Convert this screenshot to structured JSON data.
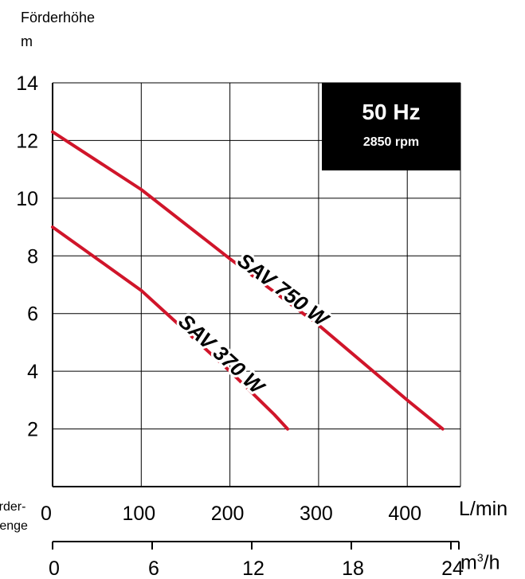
{
  "chart_data": {
    "type": "line",
    "ylabel_line1": "Förderhöhe",
    "ylabel_line2": "m",
    "xlabel_left_line1": "Förder-",
    "xlabel_left_line2": "menge",
    "x_unit_top": "L/min",
    "x_unit_bottom_base": "m",
    "x_unit_bottom_sup": "3",
    "x_unit_bottom_tail": "/h",
    "xlim": [
      0,
      460
    ],
    "ylim": [
      0,
      14
    ],
    "yticks": [
      2,
      4,
      6,
      8,
      10,
      12,
      14
    ],
    "xticks_top": [
      0,
      100,
      200,
      300,
      400
    ],
    "xticks_bottom": [
      0,
      6,
      12,
      18,
      24
    ],
    "grid": true,
    "badge": {
      "title": "50 Hz",
      "subtitle": "2850 rpm",
      "bg": "#000000",
      "fg": "#ffffff"
    },
    "series": [
      {
        "name": "SAV 750 W",
        "color": "#d0152a",
        "x": [
          0,
          100,
          200,
          300,
          400,
          440
        ],
        "y": [
          12.3,
          10.3,
          7.9,
          5.6,
          3.0,
          2.0
        ]
      },
      {
        "name": "SAV 370 W",
        "color": "#d0152a",
        "x": [
          0,
          100,
          200,
          250,
          265
        ],
        "y": [
          9.0,
          6.8,
          4.0,
          2.5,
          2.0
        ]
      }
    ]
  }
}
